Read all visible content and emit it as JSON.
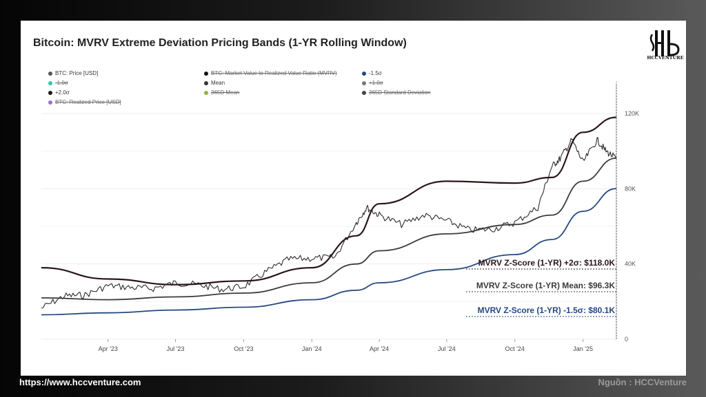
{
  "footer": {
    "website": "https://www.hccventure.com",
    "source": "Nguồn : HCCVenture"
  },
  "logo": {
    "text": "HCCVENTURE"
  },
  "colors": {
    "price": "#2b2b2b",
    "mean": "#3a3a3a",
    "plus2": "#2a1518",
    "minus15": "#24477f",
    "dashed": "#555555"
  },
  "chart_data": {
    "type": "line",
    "title": "Bitcoin: MVRV Extreme Deviation Pricing Bands (1-YR Rolling Window)",
    "x_axis": {
      "ticks": [
        "Apr '23",
        "Jul '23",
        "Oct '23",
        "Jan '24",
        "Apr '24",
        "Jul '24",
        "Oct '24",
        "Jan '25"
      ]
    },
    "y_axis": {
      "ylim": [
        0,
        120000
      ],
      "ticks": [
        "0",
        "40K",
        "80K",
        "120K"
      ],
      "grid": true
    },
    "legend": [
      {
        "label": "BTC: Price [USD]",
        "color": "#555555",
        "enabled": true
      },
      {
        "label": "BTC: Market Value to Realized Value Ratio (MVRV)",
        "color": "#111111",
        "enabled": false
      },
      {
        "label": "-1.5σ",
        "color": "#24477f",
        "enabled": true
      },
      {
        "label": "-1.0σ",
        "color": "#2ec4b6",
        "enabled": false
      },
      {
        "label": "Mean",
        "color": "#333333",
        "enabled": true
      },
      {
        "label": "+1.0σ",
        "color": "#777777",
        "enabled": false
      },
      {
        "label": "+2.0σ",
        "color": "#1a1a1a",
        "enabled": true
      },
      {
        "label": "365D Mean",
        "color": "#8fb33a",
        "enabled": false
      },
      {
        "label": "365D Standard Deviation",
        "color": "#444444",
        "enabled": false
      },
      {
        "label": "BTC: Realized Price [USD]",
        "color": "#9b6fd6",
        "enabled": false
      }
    ],
    "annotations": [
      {
        "text": "MVRV Z-Score (1-YR) +2σ: $118.0K",
        "series": "+2.0σ",
        "value": 118000
      },
      {
        "text": "MVRV Z-Score (1-YR) Mean: $96.3K",
        "series": "Mean",
        "value": 96300
      },
      {
        "text": "MVRV Z-Score (1-YR) -1.5σ: $80.1K",
        "series": "-1.5σ",
        "value": 80100
      }
    ],
    "series": [
      {
        "name": "BTC: Price [USD]",
        "x": [
          "2023-01-01",
          "2023-02-01",
          "2023-03-01",
          "2023-04-01",
          "2023-05-01",
          "2023-06-01",
          "2023-07-01",
          "2023-08-01",
          "2023-09-01",
          "2023-10-01",
          "2023-11-01",
          "2023-12-01",
          "2024-01-01",
          "2024-02-01",
          "2024-03-01",
          "2024-03-15",
          "2024-04-01",
          "2024-05-01",
          "2024-06-01",
          "2024-07-01",
          "2024-08-01",
          "2024-09-01",
          "2024-10-01",
          "2024-11-01",
          "2024-11-20",
          "2024-12-01",
          "2024-12-17",
          "2025-01-01",
          "2025-01-20",
          "2025-02-01",
          "2025-02-15"
        ],
        "values": [
          16500,
          23000,
          23500,
          28500,
          27500,
          27000,
          30000,
          29000,
          26500,
          28000,
          36000,
          42500,
          43000,
          43500,
          62000,
          70000,
          66000,
          61000,
          66000,
          63000,
          58000,
          58500,
          62000,
          70000,
          92000,
          96000,
          106000,
          94000,
          106000,
          100000,
          96000
        ]
      },
      {
        "name": "+2.0σ",
        "x": [
          "2023-01-01",
          "2023-04-01",
          "2023-07-01",
          "2023-10-01",
          "2024-01-01",
          "2024-03-01",
          "2024-04-01",
          "2024-07-01",
          "2024-10-01",
          "2024-11-20",
          "2025-01-01",
          "2025-02-15"
        ],
        "values": [
          38000,
          32000,
          29000,
          31000,
          38000,
          55000,
          72000,
          84000,
          83000,
          86000,
          110000,
          118000
        ]
      },
      {
        "name": "Mean",
        "x": [
          "2023-01-01",
          "2023-04-01",
          "2023-07-01",
          "2023-10-01",
          "2024-01-01",
          "2024-03-01",
          "2024-04-01",
          "2024-07-01",
          "2024-10-01",
          "2024-11-20",
          "2025-01-01",
          "2025-02-15"
        ],
        "values": [
          22000,
          21000,
          22500,
          24500,
          30000,
          40000,
          47000,
          56000,
          61000,
          66000,
          84000,
          96300
        ]
      },
      {
        "name": "-1.5σ",
        "x": [
          "2023-01-01",
          "2023-04-01",
          "2023-07-01",
          "2023-10-01",
          "2024-01-01",
          "2024-03-01",
          "2024-04-01",
          "2024-07-01",
          "2024-10-01",
          "2024-11-20",
          "2025-01-01",
          "2025-02-15"
        ],
        "values": [
          13000,
          14000,
          15500,
          17000,
          21000,
          26000,
          30000,
          37000,
          45000,
          53000,
          68000,
          80100
        ]
      }
    ]
  }
}
